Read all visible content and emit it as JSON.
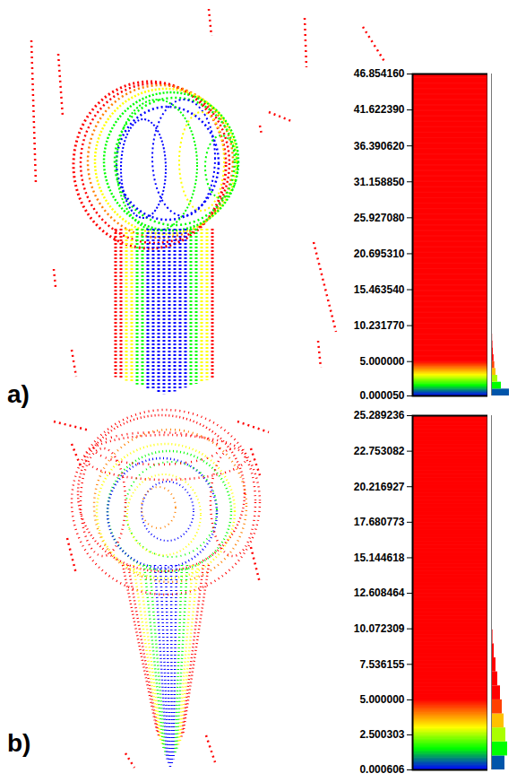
{
  "chart_data": [
    {
      "type": "colorbar",
      "panel": "a)",
      "ylim": [
        5e-05,
        46.85416
      ],
      "yticks": [
        {
          "value": 46.85416,
          "label": "46.854160"
        },
        {
          "value": 41.62239,
          "label": "41.622390"
        },
        {
          "value": 36.39062,
          "label": "36.390620"
        },
        {
          "value": 31.15885,
          "label": "31.158850"
        },
        {
          "value": 25.92708,
          "label": "25.927080"
        },
        {
          "value": 20.69531,
          "label": "20.695310"
        },
        {
          "value": 15.46354,
          "label": "15.463540"
        },
        {
          "value": 10.23177,
          "label": "10.231770"
        },
        {
          "value": 5,
          "label": "5.000000"
        },
        {
          "value": 5e-05,
          "label": "0.000050"
        }
      ],
      "color_stops": {
        "values": [
          0,
          1.5,
          3,
          4,
          5
        ],
        "colors": [
          "#0000ff",
          "#00ff00",
          "#ffff00",
          "#ff8000",
          "#ff0000"
        ]
      },
      "histogram": {
        "bins": [
          0,
          1,
          2,
          3,
          4,
          5,
          6,
          7,
          8,
          9,
          10,
          11,
          12
        ],
        "counts": [
          1.0,
          0.55,
          0.35,
          0.25,
          0.18,
          0.14,
          0.1,
          0.08,
          0.06,
          0.04,
          0.02,
          0.01
        ],
        "xlim": [
          0,
          1
        ]
      }
    },
    {
      "type": "colorbar",
      "panel": "b)",
      "ylim": [
        0.000606,
        25.289236
      ],
      "yticks": [
        {
          "value": 25.289236,
          "label": "25.289236"
        },
        {
          "value": 22.753082,
          "label": "22.753082"
        },
        {
          "value": 20.216927,
          "label": "20.216927"
        },
        {
          "value": 17.680773,
          "label": "17.680773"
        },
        {
          "value": 15.144618,
          "label": "15.144618"
        },
        {
          "value": 12.608464,
          "label": "12.608464"
        },
        {
          "value": 10.072309,
          "label": "10.072309"
        },
        {
          "value": 7.536155,
          "label": "7.536155"
        },
        {
          "value": 5,
          "label": "5.000000"
        },
        {
          "value": 2.500303,
          "label": "2.500303"
        },
        {
          "value": 0.000606,
          "label": "0.000606"
        }
      ],
      "color_stops": {
        "values": [
          0,
          1.5,
          3,
          4,
          5
        ],
        "colors": [
          "#0000ff",
          "#00ff00",
          "#ffff00",
          "#ff8000",
          "#ff0000"
        ]
      },
      "histogram": {
        "bins": [
          0,
          1,
          2,
          3,
          4,
          5,
          6,
          7,
          8,
          9,
          10
        ],
        "counts": [
          0.75,
          0.9,
          0.8,
          0.7,
          0.6,
          0.5,
          0.35,
          0.25,
          0.15,
          0.08
        ],
        "xlim": [
          0,
          1
        ]
      }
    }
  ]
}
